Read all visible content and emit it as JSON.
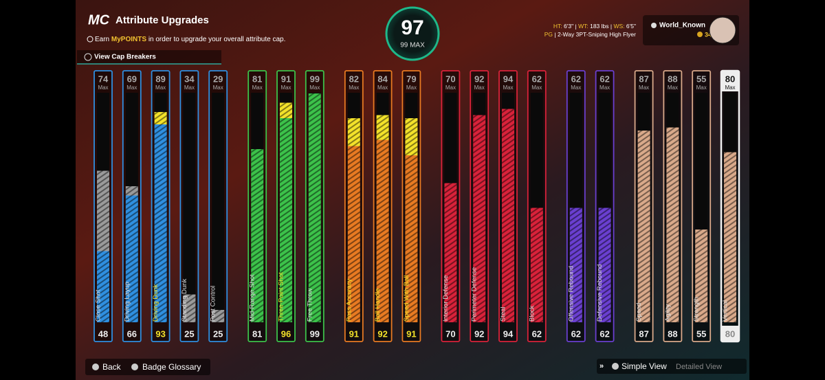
{
  "header": {
    "logo": "MC",
    "title": "Attribute Upgrades",
    "info": {
      "prefix": "Earn",
      "highlight": "MyPOINTS",
      "suffix": "in order to upgrade your overall attribute cap."
    },
    "cap_breakers": "View Cap Breakers"
  },
  "overall": {
    "value": "97",
    "max": "99 MAX"
  },
  "player": {
    "ht_label": "HT:",
    "ht": "6'3\"",
    "wt_label": "WT:",
    "wt": "183 lbs",
    "ws_label": "WS:",
    "ws": "6'5\"",
    "position": "PG",
    "build": "2-Way 3PT-Sniping High Flyer",
    "name": "World_Known",
    "vc": "34"
  },
  "attributes": [
    {
      "name": "Close Shot",
      "cap": 74,
      "cap_label": "Max",
      "current": 48,
      "color": "#2f8fe0"
    },
    {
      "name": "Driving Layup",
      "cap": 69,
      "cap_label": "Max",
      "current": 66,
      "color": "#2f8fe0"
    },
    {
      "name": "Driving Dunk",
      "cap": 89,
      "cap_label": "Max",
      "current": 93,
      "color": "#2f8fe0"
    },
    {
      "name": "Standing Dunk",
      "cap": 34,
      "cap_label": "Max",
      "current": 25,
      "color": "#2f8fe0"
    },
    {
      "name": "Post Control",
      "cap": 29,
      "cap_label": "Max",
      "current": 25,
      "color": "#2f8fe0"
    },
    {
      "name": "Mid-Range Shot",
      "cap": 81,
      "cap_label": "Max",
      "current": 81,
      "color": "#3cc24a"
    },
    {
      "name": "Three-Point Shot",
      "cap": 91,
      "cap_label": "Max",
      "current": 96,
      "color": "#3cc24a"
    },
    {
      "name": "Free Throw",
      "cap": 99,
      "cap_label": "Max",
      "current": 99,
      "color": "#3cc24a"
    },
    {
      "name": "Pass Accuracy",
      "cap": 82,
      "cap_label": "Max",
      "current": 91,
      "color": "#e87a22"
    },
    {
      "name": "Ball Handle",
      "cap": 84,
      "cap_label": "Max",
      "current": 92,
      "color": "#e87a22"
    },
    {
      "name": "Speed With Ball",
      "cap": 79,
      "cap_label": "Max",
      "current": 91,
      "color": "#e87a22"
    },
    {
      "name": "Interior Defense",
      "cap": 70,
      "cap_label": "Max",
      "current": 70,
      "color": "#d9223a"
    },
    {
      "name": "Perimeter Defense",
      "cap": 92,
      "cap_label": "Max",
      "current": 92,
      "color": "#d9223a"
    },
    {
      "name": "Steal",
      "cap": 94,
      "cap_label": "Max",
      "current": 94,
      "color": "#d9223a"
    },
    {
      "name": "Block",
      "cap": 62,
      "cap_label": "Max",
      "current": 62,
      "color": "#d9223a"
    },
    {
      "name": "Offensive Rebound",
      "cap": 62,
      "cap_label": "Max",
      "current": 62,
      "color": "#6a3fd0"
    },
    {
      "name": "Defensive Rebound",
      "cap": 62,
      "cap_label": "Max",
      "current": 62,
      "color": "#6a3fd0"
    },
    {
      "name": "Speed",
      "cap": 87,
      "cap_label": "Max",
      "current": 87,
      "color": "#d9a98a"
    },
    {
      "name": "Agility",
      "cap": 88,
      "cap_label": "Max",
      "current": 88,
      "color": "#d9a98a"
    },
    {
      "name": "Strength",
      "cap": 55,
      "cap_label": "Max",
      "current": 55,
      "color": "#d9a98a"
    },
    {
      "name": "Vertical",
      "cap": 80,
      "cap_label": "Max",
      "current": 80,
      "color": "#d9a98a",
      "selected": true
    }
  ],
  "footer": {
    "back": "Back",
    "badge_glossary": "Badge Glossary",
    "simple_view": "Simple View",
    "detailed_view": "Detailed View"
  }
}
